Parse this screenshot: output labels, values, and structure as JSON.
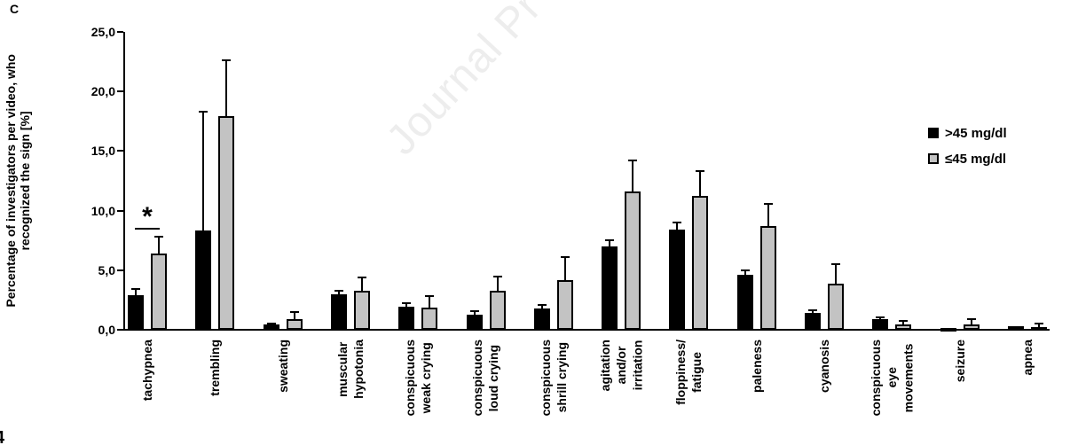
{
  "panel_label": "C",
  "watermark": {
    "text": "Journal Pr",
    "color": "#ededed"
  },
  "bottom_left_partial_text": "4",
  "chart_data": {
    "type": "bar",
    "title": "",
    "ylabel_lines": [
      "Percentage of investigators per video, who",
      "recognized the sign [%]"
    ],
    "xlabel": "",
    "ylim": [
      0,
      25
    ],
    "grid": false,
    "legend_position": "right",
    "decimal_style": "comma",
    "y_ticks": [
      {
        "value": 0,
        "label": "0,0"
      },
      {
        "value": 5,
        "label": "5,0"
      },
      {
        "value": 10,
        "label": "10,0"
      },
      {
        "value": 15,
        "label": "15,0"
      },
      {
        "value": 20,
        "label": "20,0"
      },
      {
        "value": 25,
        "label": "25,0"
      }
    ],
    "categories": [
      [
        "tachypnea"
      ],
      [
        "trembling"
      ],
      [
        "sweating"
      ],
      [
        "muscular",
        "hypotonia"
      ],
      [
        "conspicuous",
        "weak crying"
      ],
      [
        "conspicuous",
        "loud crying"
      ],
      [
        "conspicuous",
        "shrill crying"
      ],
      [
        "agitation",
        "and/or",
        "irritation"
      ],
      [
        "floppiness/",
        "fatigue"
      ],
      [
        "paleness"
      ],
      [
        "cyanosis"
      ],
      [
        "conspicuous",
        "eye",
        "movements"
      ],
      [
        "seizure"
      ],
      [
        "apnea"
      ]
    ],
    "series": [
      {
        "name": ">45 mg/dl",
        "color": "#000000",
        "values": [
          2.9,
          8.3,
          0.45,
          3.0,
          1.95,
          1.3,
          1.8,
          7.0,
          8.4,
          4.6,
          1.4,
          0.9,
          0.12,
          0.3
        ],
        "errors_upper": [
          0.5,
          10.0,
          0.1,
          0.3,
          0.25,
          0.25,
          0.3,
          0.5,
          0.6,
          0.4,
          0.2,
          0.15,
          0,
          0
        ]
      },
      {
        "name": "≤45 mg/dl",
        "color": "#c3c3c3",
        "values": [
          6.4,
          17.9,
          0.9,
          3.3,
          1.85,
          3.3,
          4.2,
          11.6,
          11.2,
          8.7,
          3.9,
          0.45,
          0.45,
          0.25
        ],
        "errors_upper": [
          1.4,
          4.7,
          0.6,
          1.1,
          0.95,
          1.2,
          1.9,
          2.6,
          2.1,
          1.9,
          1.6,
          0.3,
          0.45,
          0.25
        ]
      }
    ],
    "significance": [
      {
        "category_index": 0,
        "symbol": "*",
        "line_y_value": 8.55
      }
    ]
  }
}
